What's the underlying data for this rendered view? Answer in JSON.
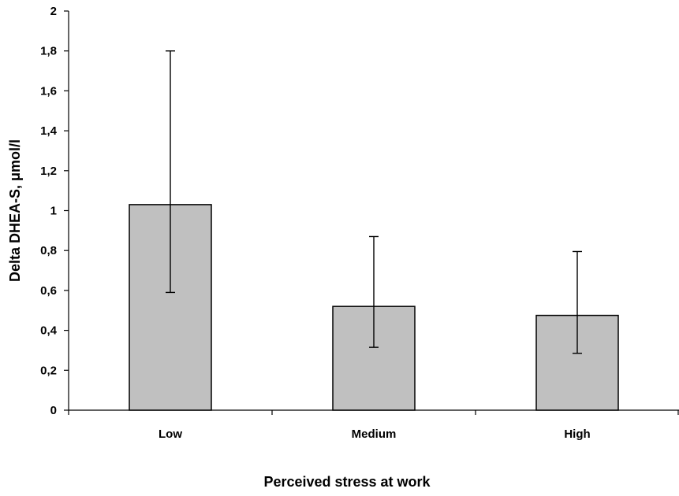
{
  "chart_data": {
    "type": "bar",
    "categories": [
      "Low",
      "Medium",
      "High"
    ],
    "series": [
      {
        "values": [
          1.03,
          0.52,
          0.475
        ],
        "error_low": [
          0.59,
          0.315,
          0.285
        ],
        "error_high": [
          1.8,
          0.87,
          0.795
        ]
      }
    ],
    "xlabel": "Perceived stress at work",
    "ylabel": "Delta DHEA-S, μmol/l",
    "ylim": [
      0,
      2
    ],
    "yticks": [
      0,
      0.2,
      0.4,
      0.6,
      0.8,
      1,
      1.2,
      1.4,
      1.6,
      1.8,
      2
    ],
    "ytick_labels": [
      "0",
      "0,2",
      "0,4",
      "0,6",
      "0,8",
      "1",
      "1,2",
      "1,4",
      "1,6",
      "1,8",
      "2"
    ],
    "bar_color": "#c0c0c0",
    "grid": false,
    "legend": "none"
  }
}
